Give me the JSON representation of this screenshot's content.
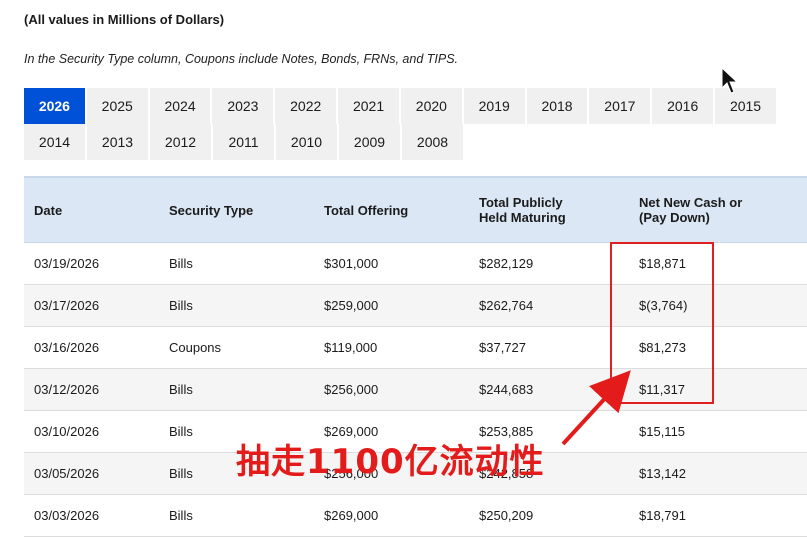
{
  "notes": {
    "units": "(All values in Millions of Dollars)",
    "security_type": "In the Security Type column, Coupons include Notes, Bonds, FRNs, and TIPS."
  },
  "year_tabs": {
    "row1": [
      "2026",
      "2025",
      "2024",
      "2023",
      "2022",
      "2021",
      "2020",
      "2019",
      "2018",
      "2017",
      "2016",
      "2015"
    ],
    "row2": [
      "2014",
      "2013",
      "2012",
      "2011",
      "2010",
      "2009",
      "2008"
    ],
    "active": "2026"
  },
  "table": {
    "headers": {
      "date": "Date",
      "security_type": "Security Type",
      "total_offering": "Total Offering",
      "held_maturing_1": "Total Publicly",
      "held_maturing_2": "Held Maturing",
      "net_new_cash_1": "Net New Cash or",
      "net_new_cash_2": "(Pay Down)"
    },
    "rows": [
      {
        "date": "03/19/2026",
        "type": "Bills",
        "offering": "$301,000",
        "maturing": "$282,129",
        "net": "$18,871"
      },
      {
        "date": "03/17/2026",
        "type": "Bills",
        "offering": "$259,000",
        "maturing": "$262,764",
        "net": "$(3,764)"
      },
      {
        "date": "03/16/2026",
        "type": "Coupons",
        "offering": "$119,000",
        "maturing": "$37,727",
        "net": "$81,273"
      },
      {
        "date": "03/12/2026",
        "type": "Bills",
        "offering": "$256,000",
        "maturing": "$244,683",
        "net": "$11,317"
      },
      {
        "date": "03/10/2026",
        "type": "Bills",
        "offering": "$269,000",
        "maturing": "$253,885",
        "net": "$15,115"
      },
      {
        "date": "03/05/2026",
        "type": "Bills",
        "offering": "$256,000",
        "maturing": "$242,858",
        "net": "$13,142"
      },
      {
        "date": "03/03/2026",
        "type": "Bills",
        "offering": "$269,000",
        "maturing": "$250,209",
        "net": "$18,791"
      }
    ]
  },
  "annotation": {
    "text": "抽走1100亿流动性",
    "color": "#e31b1b"
  },
  "colors": {
    "active_tab": "#0050d8",
    "header_bg": "#dbe7f5",
    "highlight": "#e02020"
  }
}
